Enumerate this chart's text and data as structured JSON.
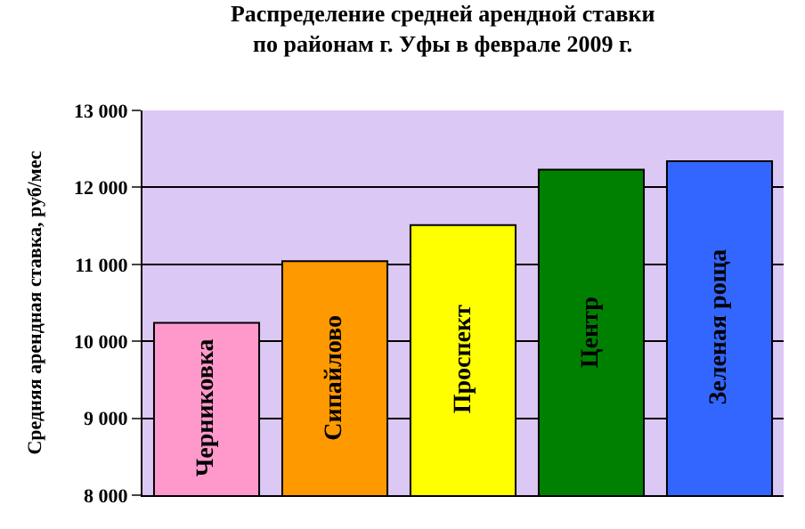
{
  "chart_data": {
    "type": "bar",
    "title": "Распределение средней арендной ставки\nпо районам г. Уфы в феврале 2009 г.",
    "ylabel": "Средняя арендная ставка, руб/мес",
    "categories": [
      "Черниковка",
      "Сипайлово",
      "Проспект",
      "Центр",
      "Зеленая роща"
    ],
    "values": [
      10240,
      11040,
      11510,
      12230,
      12340
    ],
    "colors": [
      "#ff99cc",
      "#ff9900",
      "#ffff00",
      "#008000",
      "#3366ff"
    ],
    "ylim": [
      8000,
      13000
    ],
    "yticks": [
      {
        "value": 8000,
        "label": "8 000"
      },
      {
        "value": 9000,
        "label": "9 000"
      },
      {
        "value": 10000,
        "label": "10 000"
      },
      {
        "value": 11000,
        "label": "11 000"
      },
      {
        "value": 12000,
        "label": "12 000"
      },
      {
        "value": 13000,
        "label": "13 000"
      }
    ],
    "grid": "y",
    "tick_labels": "y"
  }
}
